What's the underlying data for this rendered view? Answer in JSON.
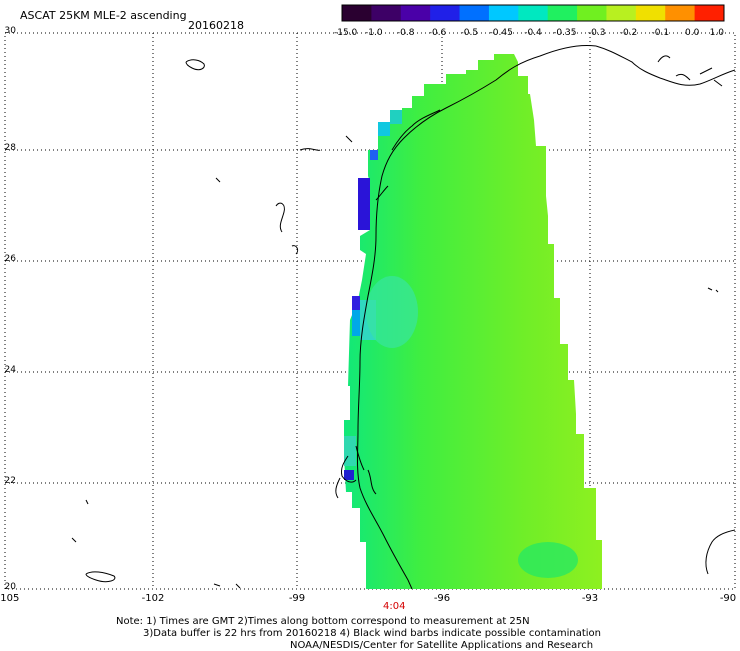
{
  "header": {
    "title": "ASCAT 25KM MLE-2 ascending",
    "date": "20160218"
  },
  "colorbar": {
    "labels": [
      "-15.0",
      "-1.0",
      "-0.8",
      "-0.6",
      "-0.5",
      "-0.45",
      "-0.4",
      "-0.35",
      "-0.3",
      "-0.2",
      "-0.1",
      "0.0",
      "1.0"
    ],
    "colors": [
      "#2a0030",
      "#3d0066",
      "#4a00a8",
      "#2020e8",
      "#0070ff",
      "#00c8ff",
      "#00e8c0",
      "#20f060",
      "#70f020",
      "#b8f020",
      "#f0e000",
      "#ff9000",
      "#ff2000"
    ]
  },
  "axes": {
    "y_labels": [
      "30",
      "28",
      "26",
      "24",
      "22",
      "20"
    ],
    "x_labels": [
      "-105",
      "-102",
      "-99",
      "-96",
      "-93",
      "-90"
    ]
  },
  "time_label": "4:04",
  "footer": {
    "line1": "Note: 1) Times are GMT 2)Times along bottom correspond to measurement at 25N",
    "line2": "3)Data buffer is 22 hrs from 20160218 4) Black wind barbs indicate possible contamination",
    "line3": "NOAA/NESDIS/Center for Satellite Applications and Research"
  }
}
